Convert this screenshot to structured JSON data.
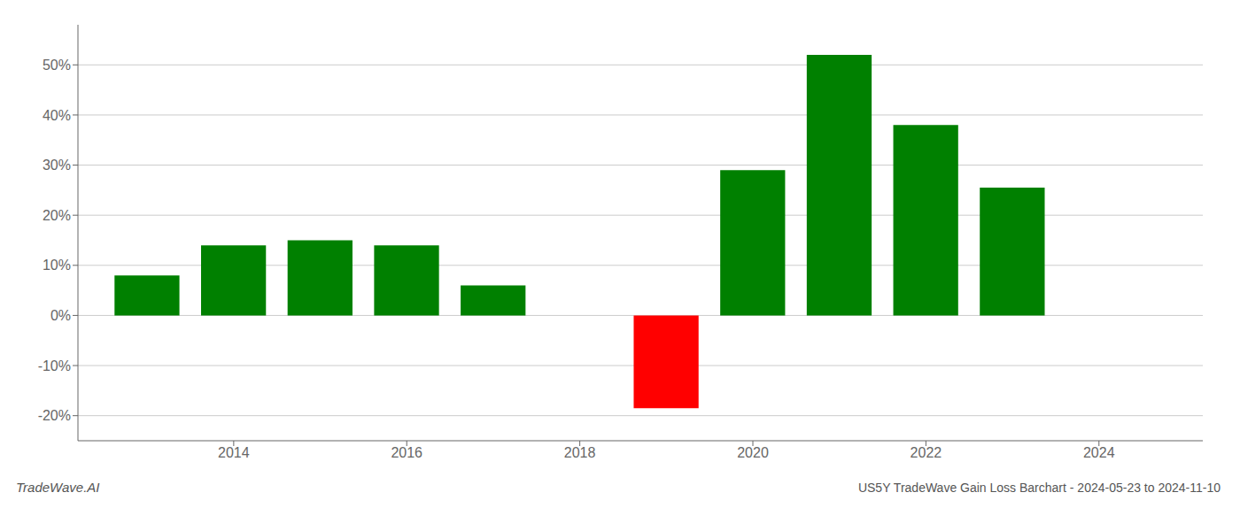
{
  "chart_data": {
    "type": "bar",
    "title": "US5Y TradeWave Gain Loss Barchart - 2024-05-23 to 2024-11-10",
    "annotations": [
      "TradeWave.AI"
    ],
    "x": [
      2013,
      2014,
      2015,
      2016,
      2017,
      2019,
      2020,
      2021,
      2022,
      2023
    ],
    "values": [
      8.0,
      14.0,
      15.0,
      14.0,
      6.0,
      -18.5,
      29.0,
      52.0,
      38.0,
      25.5
    ],
    "colors": [
      "#008000",
      "#008000",
      "#008000",
      "#008000",
      "#008000",
      "#ff0000",
      "#008000",
      "#008000",
      "#008000",
      "#008000"
    ],
    "xlim": [
      2012.2,
      2025.2
    ],
    "xticks": [
      2014,
      2016,
      2018,
      2020,
      2022,
      2024
    ],
    "ylim": [
      -25,
      58
    ],
    "yticks": [
      {
        "value": -20,
        "label": "-20%"
      },
      {
        "value": -10,
        "label": "-10%"
      },
      {
        "value": 0,
        "label": "0%"
      },
      {
        "value": 10,
        "label": "10%"
      },
      {
        "value": 20,
        "label": "20%"
      },
      {
        "value": 30,
        "label": "30%"
      },
      {
        "value": 40,
        "label": "40%"
      },
      {
        "value": 50,
        "label": "50%"
      }
    ],
    "grid": true
  }
}
